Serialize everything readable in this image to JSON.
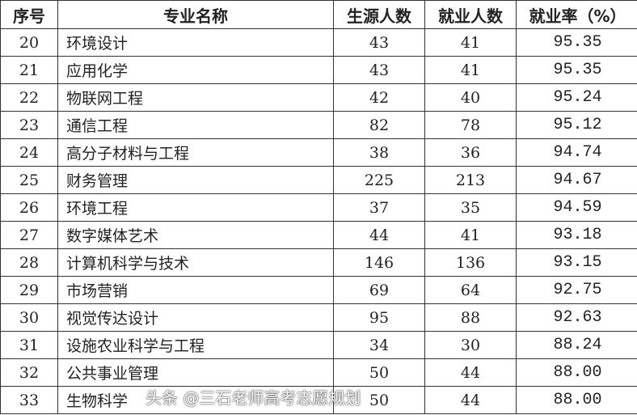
{
  "headers": [
    "序号",
    "专业名称",
    "生源人数",
    "就业人数",
    "就业率（%）"
  ],
  "rows": [
    [
      "20",
      "环境设计",
      "43",
      "41",
      "95.35"
    ],
    [
      "21",
      "应用化学",
      "43",
      "41",
      "95.35"
    ],
    [
      "22",
      "物联网工程",
      "42",
      "40",
      "95.24"
    ],
    [
      "23",
      "通信工程",
      "82",
      "78",
      "95.12"
    ],
    [
      "24",
      "高分子材料与工程",
      "38",
      "36",
      "94.74"
    ],
    [
      "25",
      "财务管理",
      "225",
      "213",
      "94.67"
    ],
    [
      "26",
      "环境工程",
      "37",
      "35",
      "94.59"
    ],
    [
      "27",
      "数字媒体艺术",
      "44",
      "41",
      "93.18"
    ],
    [
      "28",
      "计算机科学与技术",
      "146",
      "136",
      "93.15"
    ],
    [
      "29",
      "市场营销",
      "69",
      "64",
      "92.75"
    ],
    [
      "30",
      "视觉传达设计",
      "95",
      "88",
      "92.63"
    ],
    [
      "31",
      "设施农业科学与工程",
      "34",
      "30",
      "88.24"
    ],
    [
      "32",
      "公共事业管理",
      "50",
      "44",
      "88.00"
    ],
    [
      "33",
      "生物科学",
      "50",
      "44",
      "88.00"
    ]
  ],
  "watermark": "头条 @三石老师高考志愿规划"
}
